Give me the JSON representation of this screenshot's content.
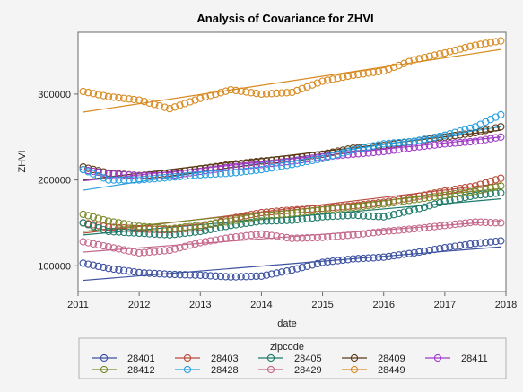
{
  "chart_data": {
    "type": "scatter",
    "title": "Analysis of Covariance for ZHVI",
    "xlabel": "date",
    "ylabel": "ZHVI",
    "xlim": [
      2011.0,
      2018.0
    ],
    "ylim": [
      70000,
      372000
    ],
    "x_ticks": [
      "2011",
      "2012",
      "2013",
      "2014",
      "2015",
      "2016",
      "2017",
      "2018"
    ],
    "y_ticks": [
      "100000",
      "200000",
      "300000"
    ],
    "legend_title": "zipcode",
    "legend_position": "bottom",
    "grid": false,
    "series": [
      {
        "name": "28401",
        "color": "#3c51a0",
        "points": [
          [
            2011.083,
            103000
          ],
          [
            2011.5,
            97000
          ],
          [
            2012,
            92000
          ],
          [
            2012.5,
            90000
          ],
          [
            2013,
            89000
          ],
          [
            2013.5,
            87000
          ],
          [
            2014,
            88000
          ],
          [
            2014.5,
            95000
          ],
          [
            2015,
            104000
          ],
          [
            2015.5,
            108000
          ],
          [
            2016,
            110000
          ],
          [
            2016.5,
            115000
          ],
          [
            2017,
            121000
          ],
          [
            2017.5,
            126000
          ],
          [
            2017.917,
            129000
          ]
        ],
        "fit": [
          [
            2011.083,
            83000
          ],
          [
            2017.917,
            122000
          ]
        ]
      },
      {
        "name": "28403",
        "color": "#b84b3a",
        "points": [
          [
            2011.083,
            150000
          ],
          [
            2011.5,
            145000
          ],
          [
            2012,
            143000
          ],
          [
            2012.5,
            142000
          ],
          [
            2013,
            145000
          ],
          [
            2013.5,
            155000
          ],
          [
            2014,
            162000
          ],
          [
            2014.5,
            165000
          ],
          [
            2015,
            167000
          ],
          [
            2015.5,
            170000
          ],
          [
            2016,
            174000
          ],
          [
            2016.5,
            180000
          ],
          [
            2017,
            187000
          ],
          [
            2017.5,
            193000
          ],
          [
            2017.917,
            202000
          ]
        ],
        "fit": [
          [
            2011.083,
            138000
          ],
          [
            2017.917,
            196000
          ]
        ]
      },
      {
        "name": "28405",
        "color": "#1e7a6a",
        "points": [
          [
            2011.083,
            150000
          ],
          [
            2011.5,
            140000
          ],
          [
            2012,
            138000
          ],
          [
            2012.5,
            136000
          ],
          [
            2013,
            140000
          ],
          [
            2013.5,
            147000
          ],
          [
            2014,
            152000
          ],
          [
            2014.5,
            153000
          ],
          [
            2015,
            157000
          ],
          [
            2015.5,
            159000
          ],
          [
            2016,
            157000
          ],
          [
            2016.5,
            165000
          ],
          [
            2017,
            175000
          ],
          [
            2017.5,
            182000
          ],
          [
            2017.917,
            185000
          ]
        ],
        "fit": [
          [
            2011.083,
            136000
          ],
          [
            2017.917,
            178000
          ]
        ]
      },
      {
        "name": "28409",
        "color": "#5b3a18",
        "points": [
          [
            2011.083,
            215000
          ],
          [
            2011.5,
            208000
          ],
          [
            2012,
            205000
          ],
          [
            2012.5,
            208000
          ],
          [
            2013,
            213000
          ],
          [
            2013.5,
            218000
          ],
          [
            2014,
            222000
          ],
          [
            2014.5,
            225000
          ],
          [
            2015,
            230000
          ],
          [
            2015.5,
            237000
          ],
          [
            2016,
            240000
          ],
          [
            2016.5,
            245000
          ],
          [
            2017,
            250000
          ],
          [
            2017.5,
            255000
          ],
          [
            2017.917,
            262000
          ]
        ],
        "fit": [
          [
            2011.083,
            200000
          ],
          [
            2017.917,
            258000
          ]
        ]
      },
      {
        "name": "28411",
        "color": "#a03cc8",
        "points": [
          [
            2011.083,
            212000
          ],
          [
            2011.5,
            207000
          ],
          [
            2012,
            205000
          ],
          [
            2012.5,
            205000
          ],
          [
            2013,
            210000
          ],
          [
            2013.5,
            215000
          ],
          [
            2014,
            218000
          ],
          [
            2014.5,
            222000
          ],
          [
            2015,
            227000
          ],
          [
            2015.5,
            230000
          ],
          [
            2016,
            233000
          ],
          [
            2016.5,
            238000
          ],
          [
            2017,
            242000
          ],
          [
            2017.5,
            245000
          ],
          [
            2017.917,
            250000
          ]
        ],
        "fit": [
          [
            2011.083,
            199000
          ],
          [
            2017.917,
            250000
          ]
        ]
      },
      {
        "name": "28412",
        "color": "#7a8a2a",
        "points": [
          [
            2011.083,
            160000
          ],
          [
            2011.5,
            152000
          ],
          [
            2012,
            146000
          ],
          [
            2012.5,
            143000
          ],
          [
            2013,
            147000
          ],
          [
            2013.5,
            152000
          ],
          [
            2014,
            158000
          ],
          [
            2014.5,
            161000
          ],
          [
            2015,
            165000
          ],
          [
            2015.5,
            168000
          ],
          [
            2016,
            172000
          ],
          [
            2016.5,
            177000
          ],
          [
            2017,
            182000
          ],
          [
            2017.5,
            187000
          ],
          [
            2017.917,
            193000
          ]
        ],
        "fit": [
          [
            2011.083,
            140000
          ],
          [
            2017.917,
            190000
          ]
        ]
      },
      {
        "name": "28428",
        "color": "#2aa0e0",
        "points": [
          [
            2011.083,
            212000
          ],
          [
            2011.5,
            200000
          ],
          [
            2012,
            200000
          ],
          [
            2012.5,
            203000
          ],
          [
            2013,
            206000
          ],
          [
            2013.5,
            208000
          ],
          [
            2014,
            212000
          ],
          [
            2014.5,
            218000
          ],
          [
            2015,
            225000
          ],
          [
            2015.5,
            235000
          ],
          [
            2016,
            242000
          ],
          [
            2016.5,
            245000
          ],
          [
            2017,
            252000
          ],
          [
            2017.5,
            262000
          ],
          [
            2017.917,
            276000
          ]
        ],
        "fit": [
          [
            2011.083,
            188000
          ],
          [
            2017.917,
            262000
          ]
        ]
      },
      {
        "name": "28429",
        "color": "#c4688c",
        "points": [
          [
            2011.083,
            128000
          ],
          [
            2011.5,
            122000
          ],
          [
            2012,
            115000
          ],
          [
            2012.5,
            118000
          ],
          [
            2013,
            127000
          ],
          [
            2013.5,
            133000
          ],
          [
            2014,
            137000
          ],
          [
            2014.5,
            132000
          ],
          [
            2015,
            133000
          ],
          [
            2015.5,
            136000
          ],
          [
            2016,
            140000
          ],
          [
            2016.5,
            143000
          ],
          [
            2017,
            147000
          ],
          [
            2017.5,
            151000
          ],
          [
            2017.917,
            150000
          ]
        ],
        "fit": [
          [
            2011.083,
            116000
          ],
          [
            2017.917,
            152000
          ]
        ]
      },
      {
        "name": "28449",
        "color": "#d88a20",
        "points": [
          [
            2011.083,
            303000
          ],
          [
            2011.5,
            297000
          ],
          [
            2012,
            293000
          ],
          [
            2012.5,
            283000
          ],
          [
            2013,
            295000
          ],
          [
            2013.5,
            305000
          ],
          [
            2014,
            300000
          ],
          [
            2014.5,
            302000
          ],
          [
            2015,
            315000
          ],
          [
            2015.5,
            322000
          ],
          [
            2016,
            327000
          ],
          [
            2016.5,
            340000
          ],
          [
            2017,
            348000
          ],
          [
            2017.5,
            357000
          ],
          [
            2017.917,
            362000
          ]
        ],
        "fit": [
          [
            2011.083,
            279000
          ],
          [
            2017.917,
            352000
          ]
        ]
      }
    ]
  }
}
